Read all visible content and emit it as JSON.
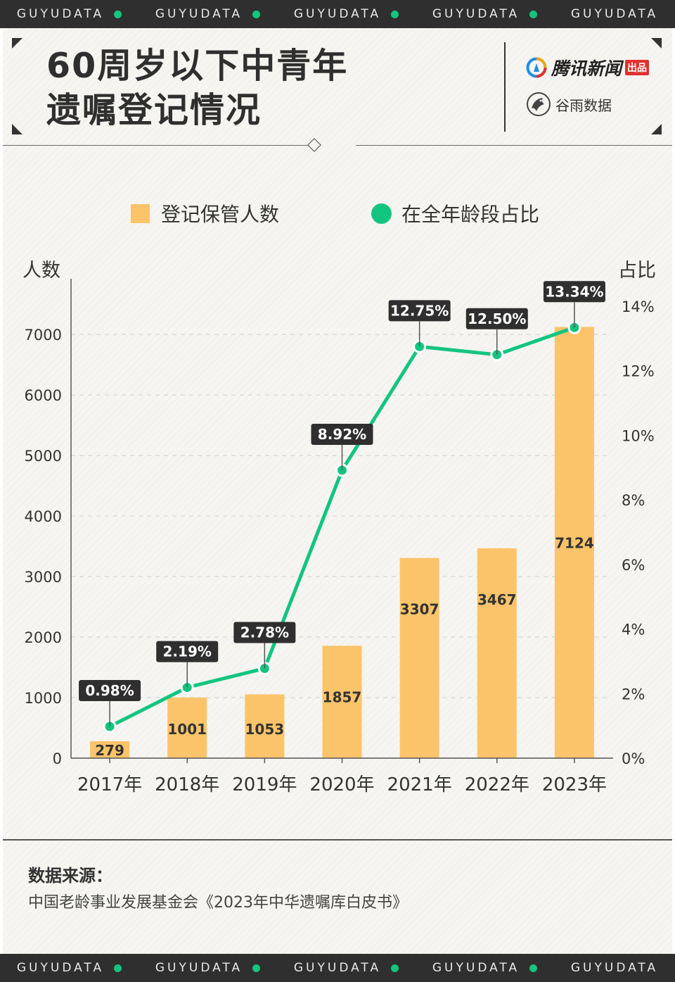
{
  "band_text": "GUYUDATA",
  "title": {
    "line1": "60周岁以下中青年",
    "line2": "遗嘱登记情况"
  },
  "brands": {
    "tencent": "腾讯新闻",
    "tencent_badge": "出品",
    "guyu": "谷雨数据"
  },
  "colors": {
    "bar": "#fbc46a",
    "line": "#12c57f",
    "label_bg": "#2f2f2f",
    "band": "#2f2f2f"
  },
  "chart_data": {
    "type": "bar",
    "categories": [
      "2017年",
      "2018年",
      "2019年",
      "2020年",
      "2021年",
      "2022年",
      "2023年"
    ],
    "series": [
      {
        "name": "登记保管人数",
        "type": "bar",
        "axis": "left",
        "values": [
          279,
          1001,
          1053,
          1857,
          3307,
          3467,
          7124
        ]
      },
      {
        "name": "在全年龄段占比",
        "type": "line",
        "axis": "right",
        "values": [
          0.98,
          2.19,
          2.78,
          8.92,
          12.75,
          12.5,
          13.34
        ]
      }
    ],
    "bar_labels": [
      "279",
      "1001",
      "1053",
      "1857",
      "3307",
      "3467",
      "7124"
    ],
    "line_labels": [
      "0.98%",
      "2.19%",
      "2.78%",
      "8.92%",
      "12.75%",
      "12.50%",
      "13.34%"
    ],
    "ylabel": "人数",
    "ylabel_right": "占比",
    "ylim": [
      0,
      7850
    ],
    "ylim_right": [
      0,
      14.72
    ],
    "yticks": [
      "0",
      "1000",
      "2000",
      "3000",
      "4000",
      "5000",
      "6000",
      "7000"
    ],
    "yticks_right": [
      "0%",
      "2%",
      "4%",
      "6%",
      "8%",
      "10%",
      "12%",
      "14%"
    ],
    "legend": [
      "登记保管人数",
      "在全年龄段占比"
    ]
  },
  "source": {
    "label": "数据来源：",
    "text": "中国老龄事业发展基金会《2023年中华遗嘱库白皮书》"
  }
}
